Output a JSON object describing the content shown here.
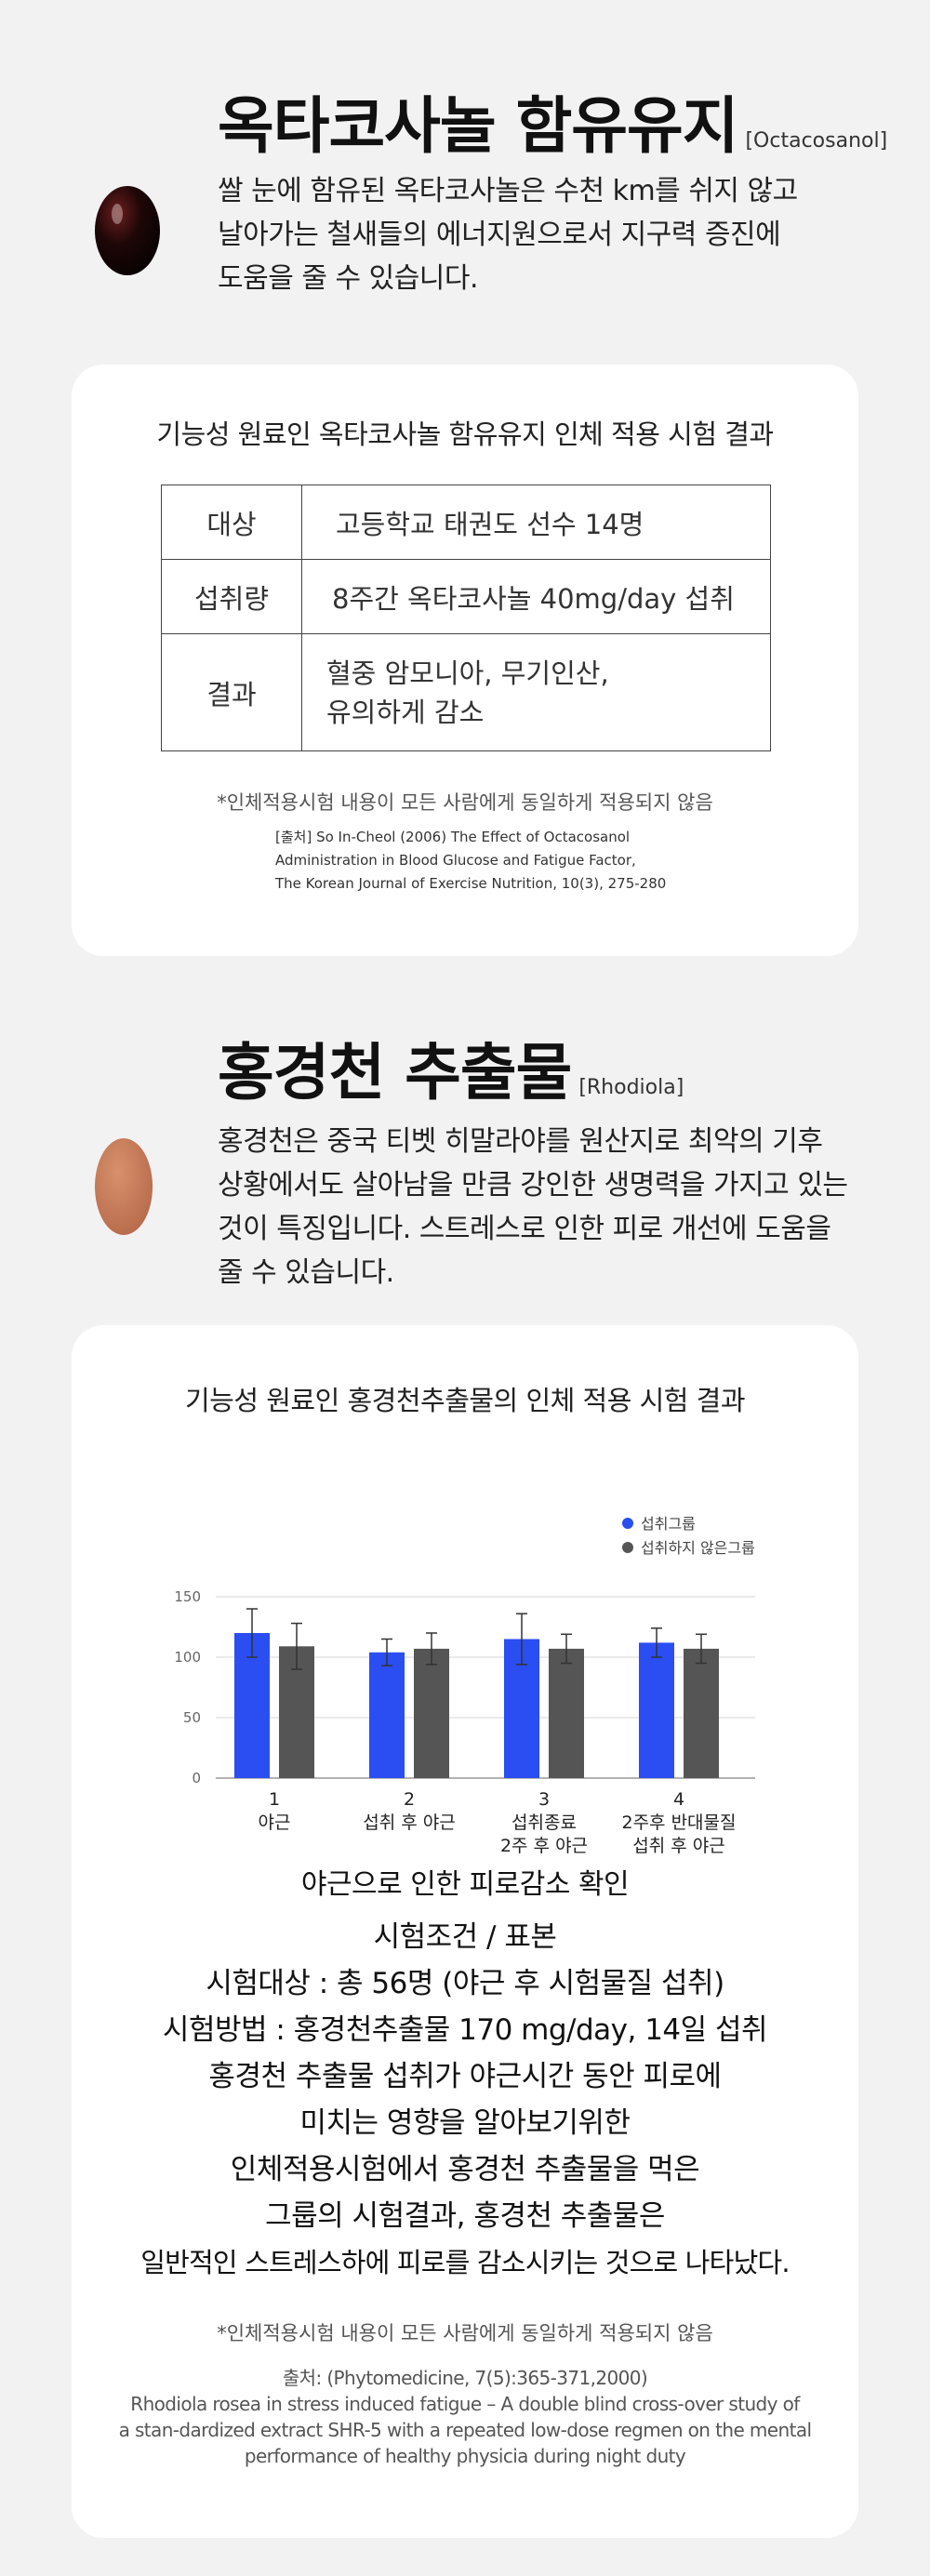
{
  "section1": {
    "title": "옥타코사놀 함유유지",
    "title_en": "[Octacosanol]",
    "desc_lines": [
      "쌀 눈에 함유된 옥타코사놀은 수천 km를 쉬지 않고",
      "날아가는 철새들의 에너지원으로서 지구력 증진에",
      "도움을 줄 수 있습니다."
    ],
    "card": {
      "heading": "기능성 원료인 옥타코사놀 함유유지 인체 적용 시험 결과",
      "rows": [
        {
          "label": "대상",
          "value": "고등학교 태권도 선수 14명"
        },
        {
          "label": "섭취량",
          "value": "8주간 옥타코사놀 40mg/day 섭취"
        },
        {
          "label": "결과",
          "value_lines": [
            "혈중 암모니아, 무기인산,",
            "유의하게 감소"
          ]
        }
      ],
      "note": "*인체적용시험 내용이 모든 사람에게 동일하게 적용되지 않음",
      "source_lines": [
        "[출처] So In-Cheol (2006) The Effect of Octacosanol",
        "Administration in Blood Glucose and Fatigue Factor,",
        "The Korean Journal of Exercise Nutrition, 10(3), 275-280"
      ]
    }
  },
  "section2": {
    "title": "홍경천 추출물",
    "title_en": "[Rhodiola]",
    "desc_lines": [
      "홍경천은 중국 티벳 히말라야를 원산지로 최악의 기후",
      "상황에서도 살아남을 만큼 강인한 생명력을 가지고 있는",
      "것이 특징입니다. 스트레스로 인한 피로 개선에 도움을",
      "줄 수 있습니다."
    ],
    "card": {
      "heading": "기능성 원료인 홍경천추출물의 인체 적용 시험 결과",
      "summary": "야근으로 인한 피로감소 확인",
      "conditions_title": "시험조건 / 표본",
      "conditions_lines": [
        "시험대상 : 총 56명 (야근 후 시험물질 섭취)",
        "시험방법 : 홍경천추출물 170 mg/day, 14일 섭취",
        "홍경천 추출물 섭취가 야근시간 동안 피로에",
        "미치는 영향을 알아보기위한",
        "인체적용시험에서 홍경천 추출물을 먹은",
        "그룹의 시험결과, 홍경천 추출물은",
        "일반적인 스트레스하에 피로를 감소시키는 것으로 나타났다."
      ],
      "note": "*인체적용시험 내용이 모든 사람에게 동일하게 적용되지 않음",
      "source_lines": [
        "출처: (Phytomedicine, 7(5):365-371,2000)",
        "Rhodiola rosea in stress induced fatigue – A double blind cross-over study of",
        "a stan-dardized extract SHR-5 with a repeated low-dose regmen on the mental",
        "performance of healthy physicia during night duty"
      ]
    }
  },
  "chart_data": {
    "type": "bar",
    "title": "",
    "categories": [
      {
        "num": "1",
        "label_lines": [
          "야근"
        ]
      },
      {
        "num": "2",
        "label_lines": [
          "섭취 후 야근"
        ]
      },
      {
        "num": "3",
        "label_lines": [
          "섭취종료",
          "2주 후 야근"
        ]
      },
      {
        "num": "4",
        "label_lines": [
          "2주후 반대물질",
          "섭취 후 야근"
        ]
      }
    ],
    "series": [
      {
        "name": "섭취그룹",
        "color": "#2b4ef2",
        "values": [
          120,
          104,
          115,
          112
        ],
        "errors": [
          20,
          11,
          21,
          12
        ]
      },
      {
        "name": "섭취하지 않은그룹",
        "color": "#555555",
        "values": [
          109,
          107,
          107,
          107
        ],
        "errors": [
          19,
          13,
          12,
          12
        ]
      }
    ],
    "ylim": [
      0,
      150
    ],
    "yticks": [
      0,
      50,
      100,
      150
    ],
    "grid": true,
    "legend_position": "top-right"
  }
}
